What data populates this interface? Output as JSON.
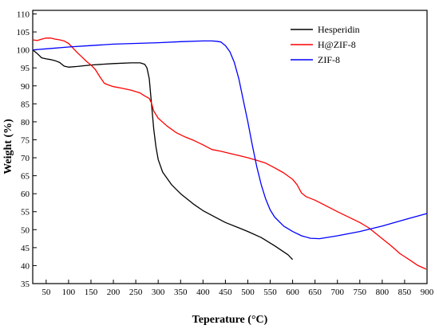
{
  "chart_data": {
    "type": "line",
    "title": "",
    "xlabel": "Teperature (°C)",
    "ylabel": "Weight (%)",
    "xlim": [
      20,
      900
    ],
    "ylim": [
      35,
      111
    ],
    "xticks": [
      50,
      100,
      150,
      200,
      250,
      300,
      350,
      400,
      450,
      500,
      550,
      600,
      650,
      700,
      750,
      800,
      850,
      900
    ],
    "yticks": [
      35,
      40,
      45,
      50,
      55,
      60,
      65,
      70,
      75,
      80,
      85,
      90,
      95,
      100,
      105,
      110
    ],
    "grid": false,
    "legend_position": "top-right",
    "series": [
      {
        "name": "Hesperidin",
        "color": "#000000",
        "points": [
          [
            20,
            100
          ],
          [
            30,
            99
          ],
          [
            40,
            97.8
          ],
          [
            50,
            97.5
          ],
          [
            60,
            97.3
          ],
          [
            70,
            97
          ],
          [
            80,
            96.5
          ],
          [
            90,
            95.5
          ],
          [
            100,
            95.2
          ],
          [
            120,
            95.4
          ],
          [
            150,
            95.8
          ],
          [
            200,
            96.2
          ],
          [
            240,
            96.4
          ],
          [
            260,
            96.4
          ],
          [
            270,
            96
          ],
          [
            275,
            95
          ],
          [
            280,
            92
          ],
          [
            285,
            85
          ],
          [
            290,
            78
          ],
          [
            295,
            73
          ],
          [
            300,
            69.5
          ],
          [
            310,
            66
          ],
          [
            330,
            62.5
          ],
          [
            350,
            60
          ],
          [
            380,
            57
          ],
          [
            400,
            55.3
          ],
          [
            430,
            53.3
          ],
          [
            450,
            52
          ],
          [
            480,
            50.5
          ],
          [
            500,
            49.5
          ],
          [
            530,
            47.8
          ],
          [
            560,
            45.5
          ],
          [
            590,
            43
          ],
          [
            600,
            41.7
          ]
        ]
      },
      {
        "name": "H@ZIF-8",
        "color": "#ff0000",
        "points": [
          [
            20,
            102.8
          ],
          [
            30,
            102.6
          ],
          [
            40,
            103
          ],
          [
            50,
            103.3
          ],
          [
            60,
            103.3
          ],
          [
            70,
            103
          ],
          [
            80,
            102.8
          ],
          [
            90,
            102.5
          ],
          [
            100,
            101.8
          ],
          [
            110,
            100.5
          ],
          [
            120,
            99.2
          ],
          [
            130,
            98
          ],
          [
            140,
            96.8
          ],
          [
            150,
            95.8
          ],
          [
            160,
            94.5
          ],
          [
            170,
            92.5
          ],
          [
            180,
            90.7
          ],
          [
            190,
            90.2
          ],
          [
            200,
            89.8
          ],
          [
            220,
            89.3
          ],
          [
            240,
            88.8
          ],
          [
            260,
            88
          ],
          [
            270,
            87.2
          ],
          [
            280,
            86.5
          ],
          [
            285,
            85.2
          ],
          [
            290,
            83
          ],
          [
            300,
            81
          ],
          [
            320,
            78.8
          ],
          [
            340,
            77
          ],
          [
            360,
            75.8
          ],
          [
            380,
            74.8
          ],
          [
            400,
            73.6
          ],
          [
            420,
            72.3
          ],
          [
            440,
            71.8
          ],
          [
            460,
            71.2
          ],
          [
            480,
            70.6
          ],
          [
            500,
            70
          ],
          [
            520,
            69.3
          ],
          [
            540,
            68.5
          ],
          [
            560,
            67.2
          ],
          [
            580,
            65.8
          ],
          [
            600,
            64
          ],
          [
            610,
            62.5
          ],
          [
            620,
            60.2
          ],
          [
            630,
            59.2
          ],
          [
            650,
            58.2
          ],
          [
            680,
            56.3
          ],
          [
            700,
            55
          ],
          [
            720,
            53.8
          ],
          [
            750,
            52
          ],
          [
            770,
            50.5
          ],
          [
            800,
            47.5
          ],
          [
            820,
            45.5
          ],
          [
            840,
            43.3
          ],
          [
            860,
            41.7
          ],
          [
            880,
            40
          ],
          [
            898,
            39
          ]
        ]
      },
      {
        "name": "ZIF-8",
        "color": "#0000ff",
        "points": [
          [
            20,
            100
          ],
          [
            50,
            100.3
          ],
          [
            100,
            100.8
          ],
          [
            150,
            101.2
          ],
          [
            200,
            101.6
          ],
          [
            250,
            101.8
          ],
          [
            300,
            102
          ],
          [
            350,
            102.3
          ],
          [
            400,
            102.5
          ],
          [
            420,
            102.5
          ],
          [
            430,
            102.4
          ],
          [
            440,
            102.2
          ],
          [
            450,
            101.2
          ],
          [
            460,
            99.5
          ],
          [
            470,
            96.5
          ],
          [
            480,
            92
          ],
          [
            490,
            86
          ],
          [
            500,
            80
          ],
          [
            510,
            73.5
          ],
          [
            520,
            67.5
          ],
          [
            530,
            62.5
          ],
          [
            540,
            58.5
          ],
          [
            550,
            55.5
          ],
          [
            560,
            53.5
          ],
          [
            580,
            51
          ],
          [
            600,
            49.5
          ],
          [
            620,
            48.3
          ],
          [
            640,
            47.6
          ],
          [
            660,
            47.5
          ],
          [
            700,
            48.3
          ],
          [
            750,
            49.5
          ],
          [
            800,
            51
          ],
          [
            850,
            52.8
          ],
          [
            900,
            54.5
          ]
        ]
      }
    ]
  }
}
